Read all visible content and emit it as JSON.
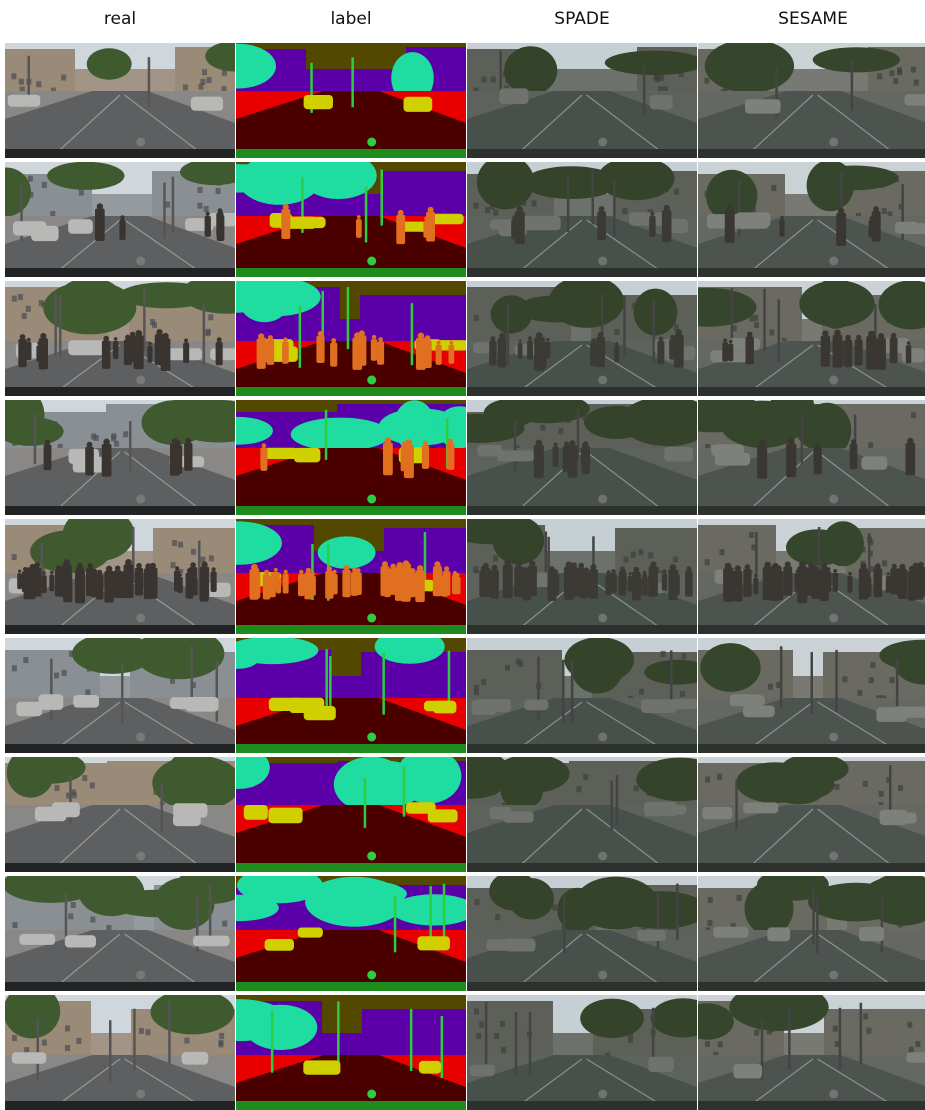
{
  "headers": [
    "real",
    "label",
    "SPADE",
    "SESAME"
  ],
  "rows": [
    {
      "variant": 0,
      "people": 0
    },
    {
      "variant": 1,
      "people": 5
    },
    {
      "variant": 2,
      "people": 14
    },
    {
      "variant": 3,
      "people": 6
    },
    {
      "variant": 4,
      "people": 40
    },
    {
      "variant": 5,
      "people": 0
    },
    {
      "variant": 6,
      "people": 0
    },
    {
      "variant": 7,
      "people": 0
    },
    {
      "variant": 8,
      "people": 0
    }
  ],
  "colors": {
    "label_road": "#4b0000",
    "label_sidewalk": "#e80000",
    "label_building": "#5b00a8",
    "label_vegetation": "#1fdca0",
    "label_sky": "#524800",
    "label_car": "#d0d000",
    "label_person": "#e07020",
    "label_terrain": "#1d8c1d",
    "label_pole": "#2ecc40"
  }
}
